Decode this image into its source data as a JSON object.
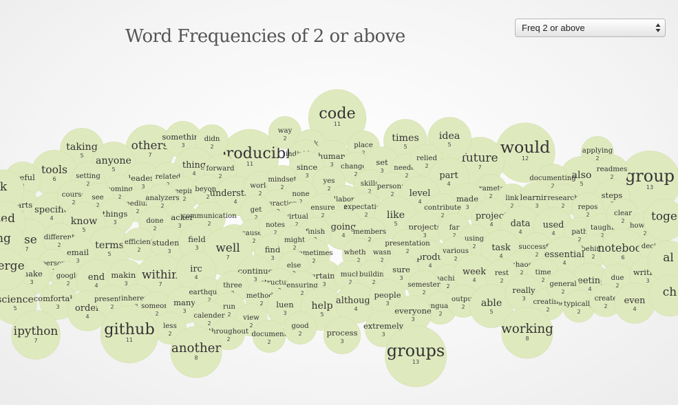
{
  "title": "Word Frequencies of 2 or above",
  "select": {
    "value": "Freq 2 or above"
  },
  "colors": {
    "bubble": "#dfe9be",
    "bubble_stroke": "#d2deaa",
    "text": "#333333"
  },
  "words": [
    {
      "w": "code",
      "n": "11"
    },
    {
      "w": "reproducible",
      "n": "11"
    },
    {
      "w": "others",
      "n": "7"
    },
    {
      "w": "would",
      "n": "12"
    },
    {
      "w": "future",
      "n": "7"
    },
    {
      "w": "idea",
      "n": "5"
    },
    {
      "w": "times",
      "n": "5"
    },
    {
      "w": "taking",
      "n": "5"
    },
    {
      "w": "something",
      "n": "3"
    },
    {
      "w": "didn",
      "n": "2"
    },
    {
      "w": "way",
      "n": "2"
    },
    {
      "w": "took",
      "n": "2"
    },
    {
      "w": "place",
      "n": "2"
    },
    {
      "w": "individuals",
      "n": "2"
    },
    {
      "w": "human",
      "n": "3"
    },
    {
      "w": "since",
      "n": "3"
    },
    {
      "w": "changed",
      "n": "2"
    },
    {
      "w": "set",
      "n": "3"
    },
    {
      "w": "needed",
      "n": "2"
    },
    {
      "w": "relied",
      "n": "2"
    },
    {
      "w": "part",
      "n": "4"
    },
    {
      "w": "applying",
      "n": "2"
    },
    {
      "w": "group",
      "n": "13"
    },
    {
      "w": "also",
      "n": "5"
    },
    {
      "w": "readmes",
      "n": "2"
    },
    {
      "w": "documenting",
      "n": "2"
    },
    {
      "w": "anyone",
      "n": "5"
    },
    {
      "w": "tools",
      "n": "6"
    },
    {
      "w": "useful",
      "n": "3"
    },
    {
      "w": "thing",
      "n": "4"
    },
    {
      "w": "forward",
      "n": "2"
    },
    {
      "w": "leaders",
      "n": "3"
    },
    {
      "w": "related",
      "n": "2"
    },
    {
      "w": "setting",
      "n": "2"
    },
    {
      "w": "coming",
      "n": "2"
    },
    {
      "w": "keeping",
      "n": "2"
    },
    {
      "w": "beyond",
      "n": "2"
    },
    {
      "w": "understand",
      "n": "4"
    },
    {
      "w": "world",
      "n": "2"
    },
    {
      "w": "mindset",
      "n": "2"
    },
    {
      "w": "yes",
      "n": "2"
    },
    {
      "w": "skills",
      "n": "2"
    },
    {
      "w": "personal",
      "n": "2"
    },
    {
      "w": "level",
      "n": "4"
    },
    {
      "w": "parameters",
      "n": "2"
    },
    {
      "w": "link",
      "n": "2"
    },
    {
      "w": "learning",
      "n": "3"
    },
    {
      "w": "research",
      "n": "2"
    },
    {
      "w": "steps",
      "n": "3"
    },
    {
      "w": "repos",
      "n": "2"
    },
    {
      "w": "parts",
      "n": "3"
    },
    {
      "w": "specific",
      "n": "4"
    },
    {
      "w": "course",
      "n": "2"
    },
    {
      "w": "see",
      "n": "2"
    },
    {
      "w": "medium",
      "n": "2"
    },
    {
      "w": "analyzers",
      "n": "2"
    },
    {
      "w": "things",
      "n": "3"
    },
    {
      "w": "none",
      "n": "2"
    },
    {
      "w": "interaction",
      "n": "2"
    },
    {
      "w": "collaborate",
      "n": "2"
    },
    {
      "w": "expectations",
      "n": "2"
    },
    {
      "w": "ensure",
      "n": "2"
    },
    {
      "w": "made",
      "n": "3"
    },
    {
      "w": "contribute",
      "n": "2"
    },
    {
      "w": "know",
      "n": "5"
    },
    {
      "w": "hacker",
      "n": "3"
    },
    {
      "w": "done",
      "n": "2"
    },
    {
      "w": "communication",
      "n": "2"
    },
    {
      "w": "get",
      "n": "2"
    },
    {
      "w": "virtual",
      "n": "2"
    },
    {
      "w": "like",
      "n": "5"
    },
    {
      "w": "projects",
      "n": "3"
    },
    {
      "w": "project",
      "n": "4"
    },
    {
      "w": "data",
      "n": "4"
    },
    {
      "w": "used",
      "n": "4"
    },
    {
      "w": "path",
      "n": "2"
    },
    {
      "w": "taught",
      "n": "2"
    },
    {
      "w": "clear",
      "n": "2"
    },
    {
      "w": "however",
      "n": "2"
    },
    {
      "w": "use",
      "n": "7"
    },
    {
      "w": "different",
      "n": "2"
    },
    {
      "w": "terms",
      "n": "5"
    },
    {
      "w": "efficient",
      "n": "2"
    },
    {
      "w": "students",
      "n": "3"
    },
    {
      "w": "field",
      "n": "3"
    },
    {
      "w": "rather",
      "n": "2"
    },
    {
      "w": "caused",
      "n": "2"
    },
    {
      "w": "notes",
      "n": "2"
    },
    {
      "w": "going",
      "n": "4"
    },
    {
      "w": "finish",
      "n": "2"
    },
    {
      "w": "members",
      "n": "2"
    },
    {
      "w": "far",
      "n": "2"
    },
    {
      "w": "using",
      "n": "2"
    },
    {
      "w": "task",
      "n": "4"
    },
    {
      "w": "successful",
      "n": "2"
    },
    {
      "w": "behind",
      "n": "2"
    },
    {
      "w": "notebook",
      "n": "6"
    },
    {
      "w": "decided",
      "n": "2"
    },
    {
      "w": "email",
      "n": "3"
    },
    {
      "w": "person",
      "n": "2"
    },
    {
      "w": "well",
      "n": "7"
    },
    {
      "w": "find",
      "n": "3"
    },
    {
      "w": "might",
      "n": "2"
    },
    {
      "w": "sometimes",
      "n": "2"
    },
    {
      "w": "reproduce",
      "n": "4"
    },
    {
      "w": "whether",
      "n": "2"
    },
    {
      "w": "wasn",
      "n": "2"
    },
    {
      "w": "presentation",
      "n": "2"
    },
    {
      "w": "various",
      "n": "2"
    },
    {
      "w": "essential",
      "n": "4"
    },
    {
      "w": "make",
      "n": "3"
    },
    {
      "w": "google",
      "n": "2"
    },
    {
      "w": "end",
      "n": "4"
    },
    {
      "w": "making",
      "n": "3"
    },
    {
      "w": "within",
      "n": "7"
    },
    {
      "w": "irc",
      "n": "4"
    },
    {
      "w": "continue",
      "n": "3"
    },
    {
      "w": "else",
      "n": "2"
    },
    {
      "w": "certainly",
      "n": "3"
    },
    {
      "w": "much",
      "n": "2"
    },
    {
      "w": "building",
      "n": "2"
    },
    {
      "w": "sure",
      "n": "3"
    },
    {
      "w": "machine",
      "n": "2"
    },
    {
      "w": "semester",
      "n": "2"
    },
    {
      "w": "week",
      "n": "4"
    },
    {
      "w": "chaos",
      "n": "2"
    },
    {
      "w": "rest",
      "n": "2"
    },
    {
      "w": "time",
      "n": "2"
    },
    {
      "w": "meetings",
      "n": "4"
    },
    {
      "w": "due",
      "n": "2"
    },
    {
      "w": "writing",
      "n": "3"
    },
    {
      "w": "science",
      "n": "5"
    },
    {
      "w": "comfortable",
      "n": "3"
    },
    {
      "w": "order",
      "n": "4"
    },
    {
      "w": "presented",
      "n": "2"
    },
    {
      "w": "inherent",
      "n": "2"
    },
    {
      "w": "someone",
      "n": "2"
    },
    {
      "w": "many",
      "n": "3"
    },
    {
      "w": "earthquake",
      "n": "2"
    },
    {
      "w": "three",
      "n": "2"
    },
    {
      "w": "structured",
      "n": "2"
    },
    {
      "w": "ensuring",
      "n": "2"
    },
    {
      "w": "methods",
      "n": "2"
    },
    {
      "w": "run",
      "n": "2"
    },
    {
      "w": "luen",
      "n": "3"
    },
    {
      "w": "help",
      "n": "5"
    },
    {
      "w": "although",
      "n": "4"
    },
    {
      "w": "people",
      "n": "3"
    },
    {
      "w": "language",
      "n": "2"
    },
    {
      "w": "output",
      "n": "2"
    },
    {
      "w": "everyone",
      "n": "3"
    },
    {
      "w": "able",
      "n": "5"
    },
    {
      "w": "really",
      "n": "3"
    },
    {
      "w": "creating",
      "n": "2"
    },
    {
      "w": "general",
      "n": "2"
    },
    {
      "w": "typically",
      "n": "2"
    },
    {
      "w": "create",
      "n": "2"
    },
    {
      "w": "even",
      "n": "4"
    },
    {
      "w": "calender",
      "n": "2"
    },
    {
      "w": "view",
      "n": "2"
    },
    {
      "w": "less",
      "n": "2"
    },
    {
      "w": "ipython",
      "n": "7"
    },
    {
      "w": "github",
      "n": "11"
    },
    {
      "w": "throughout",
      "n": "2"
    },
    {
      "w": "document",
      "n": "2"
    },
    {
      "w": "good",
      "n": "2"
    },
    {
      "w": "process",
      "n": "3"
    },
    {
      "w": "extremely",
      "n": "3"
    },
    {
      "w": "working",
      "n": "8"
    },
    {
      "w": "another",
      "n": "8"
    },
    {
      "w": "groups",
      "n": "13"
    },
    {
      "w": "k",
      "n": "",
      "clip": true
    },
    {
      "w": "zed",
      "n": "",
      "clip": true
    },
    {
      "w": "ng",
      "n": "",
      "clip": true
    },
    {
      "w": "merge",
      "n": "",
      "clip": true
    },
    {
      "w": "toge",
      "n": "",
      "clip": true
    },
    {
      "w": "al",
      "n": "",
      "clip": true
    },
    {
      "w": "ch",
      "n": "",
      "clip": true
    }
  ]
}
